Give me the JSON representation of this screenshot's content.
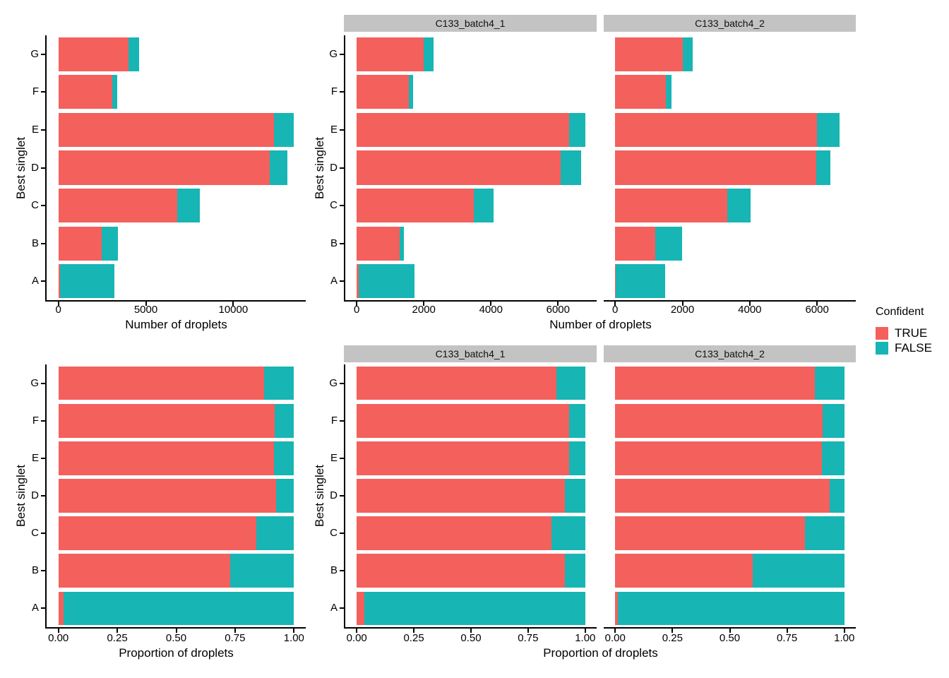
{
  "figure": {
    "y_axis_title": "Best singlet",
    "legend": {
      "title": "Confident",
      "entries": [
        {
          "label": "TRUE",
          "color": "#F4605C"
        },
        {
          "label": "FALSE",
          "color": "#17B5B4"
        }
      ]
    },
    "colors": {
      "confident_true": "#F4605C",
      "confident_false": "#17B5B4",
      "strip_background": "#C3C3C3",
      "axis_line": "#000000",
      "text": "#000000",
      "background": "#FFFFFF"
    }
  },
  "chart_data": [
    {
      "id": "counts_combined",
      "type": "bar",
      "orientation": "horizontal",
      "stacked": true,
      "xlabel": "Number of droplets",
      "ylabel": "Best singlet",
      "categories": [
        "A",
        "B",
        "C",
        "D",
        "E",
        "F",
        "G"
      ],
      "series": [
        {
          "name": "TRUE",
          "values": [
            75,
            2475,
            6810,
            12065,
            12330,
            3075,
            4010
          ]
        },
        {
          "name": "FALSE",
          "values": [
            3130,
            925,
            1290,
            1010,
            1140,
            280,
            590
          ]
        }
      ],
      "x_ticks": [
        {
          "value": 0,
          "label": "0"
        },
        {
          "value": 5000,
          "label": "5000"
        },
        {
          "value": 10000,
          "label": "10000"
        }
      ],
      "x_domain_max": 13470,
      "grid": false
    },
    {
      "id": "counts_by_sample",
      "type": "bar",
      "orientation": "horizontal",
      "stacked": true,
      "xlabel": "Number of droplets",
      "ylabel": "Best singlet",
      "categories": [
        "A",
        "B",
        "C",
        "D",
        "E",
        "F",
        "G"
      ],
      "facets": [
        {
          "name": "C133_batch4_1",
          "series": [
            {
              "name": "TRUE",
              "values": [
                55,
                1280,
                3480,
                6080,
                6330,
                1560,
                2000
              ]
            },
            {
              "name": "FALSE",
              "values": [
                1665,
                125,
                600,
                600,
                480,
                120,
                290
              ]
            }
          ]
        },
        {
          "name": "C133_batch4_2",
          "series": [
            {
              "name": "TRUE",
              "values": [
                20,
                1195,
                3330,
                5985,
                6000,
                1515,
                2010
              ]
            },
            {
              "name": "FALSE",
              "values": [
                1465,
                800,
                690,
                410,
                660,
                160,
                300
              ]
            }
          ]
        }
      ],
      "x_ticks": [
        {
          "value": 0,
          "label": "0"
        },
        {
          "value": 2000,
          "label": "2000"
        },
        {
          "value": 4000,
          "label": "4000"
        },
        {
          "value": 6000,
          "label": "6000"
        }
      ],
      "x_domain_max": 6810,
      "grid": false
    },
    {
      "id": "proportions_combined",
      "type": "bar",
      "orientation": "horizontal",
      "stacked": true,
      "xlabel": "Proportion of droplets",
      "ylabel": "Best singlet",
      "categories": [
        "A",
        "B",
        "C",
        "D",
        "E",
        "F",
        "G"
      ],
      "series": [
        {
          "name": "TRUE",
          "values": [
            0.023,
            0.728,
            0.841,
            0.923,
            0.915,
            0.917,
            0.872
          ]
        },
        {
          "name": "FALSE",
          "values": [
            0.977,
            0.272,
            0.159,
            0.077,
            0.085,
            0.083,
            0.128
          ]
        }
      ],
      "x_ticks": [
        {
          "value": 0,
          "label": "0.00"
        },
        {
          "value": 0.25,
          "label": "0.25"
        },
        {
          "value": 0.5,
          "label": "0.50"
        },
        {
          "value": 0.75,
          "label": "0.75"
        },
        {
          "value": 1,
          "label": "1.00"
        }
      ],
      "x_domain_max": 1,
      "grid": false
    },
    {
      "id": "proportions_by_sample",
      "type": "bar",
      "orientation": "horizontal",
      "stacked": true,
      "xlabel": "Proportion of droplets",
      "ylabel": "Best singlet",
      "categories": [
        "A",
        "B",
        "C",
        "D",
        "E",
        "F",
        "G"
      ],
      "facets": [
        {
          "name": "C133_batch4_1",
          "series": [
            {
              "name": "TRUE",
              "values": [
                0.032,
                0.911,
                0.853,
                0.91,
                0.93,
                0.929,
                0.873
              ]
            },
            {
              "name": "FALSE",
              "values": [
                0.968,
                0.089,
                0.147,
                0.09,
                0.07,
                0.071,
                0.127
              ]
            }
          ]
        },
        {
          "name": "C133_batch4_2",
          "series": [
            {
              "name": "TRUE",
              "values": [
                0.013,
                0.599,
                0.828,
                0.936,
                0.901,
                0.904,
                0.87
              ]
            },
            {
              "name": "FALSE",
              "values": [
                0.987,
                0.401,
                0.172,
                0.064,
                0.099,
                0.096,
                0.13
              ]
            }
          ]
        }
      ],
      "x_ticks": [
        {
          "value": 0,
          "label": "0.00"
        },
        {
          "value": 0.25,
          "label": "0.25"
        },
        {
          "value": 0.5,
          "label": "0.50"
        },
        {
          "value": 0.75,
          "label": "0.75"
        },
        {
          "value": 1,
          "label": "1.00"
        }
      ],
      "x_domain_max": 1,
      "grid": false
    }
  ]
}
